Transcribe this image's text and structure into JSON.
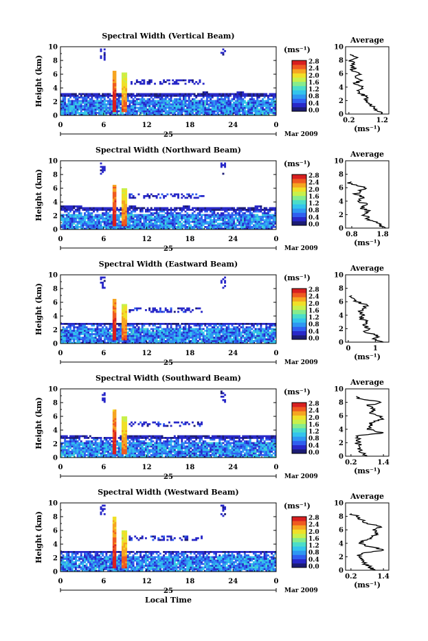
{
  "colorbar": {
    "unit": "(ms⁻¹)",
    "ticks": [
      "0.0",
      "0.4",
      "0.8",
      "1.2",
      "1.6",
      "2.0",
      "2.4",
      "2.8"
    ],
    "colors": [
      "#1c1c74",
      "#2828c8",
      "#2f5ff0",
      "#2e97f2",
      "#33c4ec",
      "#4bddc9",
      "#86ec8c",
      "#c8f04b",
      "#f0e028",
      "#f6a521",
      "#ef5a20",
      "#d81f1f"
    ]
  },
  "x_axis": {
    "ticks": [
      "0",
      "6",
      "12",
      "18",
      "24",
      "0"
    ],
    "day": "25",
    "month_label": "Mar 2009",
    "label": "Local Time"
  },
  "y_axis": {
    "label": "Height (km)",
    "ticks": [
      "0",
      "2",
      "4",
      "6",
      "8",
      "10"
    ]
  },
  "profile_title": "Average",
  "profile_unit": "(ms⁻¹)",
  "chart_data": [
    {
      "type": "heatmap",
      "title": "Spectral Width (Vertical Beam)",
      "xlabel": "",
      "ylabel": "Height (km)",
      "xlim": [
        0,
        24
      ],
      "ylim": [
        0,
        10
      ],
      "clim": [
        0.0,
        2.8
      ],
      "cloud_top_km": [
        3.3,
        3.3,
        3.3,
        3.2,
        3.2,
        3.3,
        3.2,
        3.3,
        3.4,
        3.3,
        3.4,
        3.3,
        3.3
      ],
      "cloud_top_times_h": [
        0,
        2,
        4,
        6,
        8,
        10,
        12,
        14,
        16,
        18,
        20,
        22,
        24
      ],
      "convection": [
        {
          "x": [
            5.7,
            6.3
          ],
          "top_km": 6.5,
          "value": 2.8
        },
        {
          "x": [
            6.8,
            7.3
          ],
          "top_km": 6.2,
          "value": 2.4
        }
      ],
      "profile": {
        "title": "Average",
        "xticks": [
          "0.2",
          "1.2"
        ],
        "xlim": [
          0.1,
          1.4
        ],
        "heights_km": [
          0,
          0.5,
          1,
          1.5,
          2,
          2.5,
          3,
          3.5,
          4,
          4.5,
          5,
          5.5,
          6,
          6.5,
          7,
          7.5,
          8,
          8.5,
          9,
          9.5,
          10
        ],
        "values": [
          1.2,
          1.05,
          0.95,
          0.8,
          0.7,
          0.75,
          0.55,
          0.45,
          0.6,
          0.35,
          0.6,
          0.4,
          0.5,
          0.3,
          0.35,
          0.3,
          0.25,
          0.4,
          0.3,
          null,
          null
        ]
      }
    },
    {
      "type": "heatmap",
      "title": "Spectral Width (Northward Beam)",
      "xlabel": "",
      "ylabel": "Height (km)",
      "xlim": [
        0,
        24
      ],
      "ylim": [
        0,
        10
      ],
      "clim": [
        0.0,
        2.8
      ],
      "cloud_top_km": [
        3.4,
        3.4,
        3.3,
        3.3,
        3.4,
        3.3,
        3.3,
        3.4,
        3.3,
        3.3,
        3.3,
        3.4,
        3.3
      ],
      "cloud_top_times_h": [
        0,
        2,
        4,
        6,
        8,
        10,
        12,
        14,
        16,
        18,
        20,
        22,
        24
      ],
      "convection": [
        {
          "x": [
            5.7,
            6.3
          ],
          "top_km": 6.5,
          "value": 2.8
        },
        {
          "x": [
            6.8,
            7.3
          ],
          "top_km": 6.0,
          "value": 2.4
        }
      ],
      "profile": {
        "title": "Average",
        "xticks": [
          "0.8",
          "1.8"
        ],
        "xlim": [
          0.6,
          2.0
        ],
        "heights_km": [
          0,
          0.5,
          1,
          1.5,
          2,
          2.5,
          3,
          3.5,
          4,
          4.5,
          5,
          5.5,
          6,
          6.5,
          7,
          7.5,
          8,
          8.5,
          9,
          9.5,
          10
        ],
        "values": [
          1.9,
          1.7,
          1.5,
          1.3,
          1.2,
          1.35,
          1.1,
          1.3,
          1.0,
          1.2,
          0.9,
          1.1,
          1.2,
          0.8,
          0.7,
          null,
          null,
          null,
          null,
          null,
          null
        ]
      }
    },
    {
      "type": "heatmap",
      "title": "Spectral Width (Eastward Beam)",
      "xlabel": "",
      "ylabel": "Height (km)",
      "xlim": [
        0,
        24
      ],
      "ylim": [
        0,
        10
      ],
      "clim": [
        0.0,
        2.8
      ],
      "cloud_top_km": [
        3.0,
        3.0,
        3.0,
        2.9,
        3.0,
        2.9,
        3.0,
        3.0,
        2.9,
        3.0,
        3.0,
        3.1,
        3.0
      ],
      "cloud_top_times_h": [
        0,
        2,
        4,
        6,
        8,
        10,
        12,
        14,
        16,
        18,
        20,
        22,
        24
      ],
      "convection": [
        {
          "x": [
            5.7,
            6.3
          ],
          "top_km": 6.5,
          "value": 2.8
        },
        {
          "x": [
            6.8,
            7.3
          ],
          "top_km": 5.8,
          "value": 2.4
        }
      ],
      "profile": {
        "title": "Average",
        "xticks": [
          "0",
          "1"
        ],
        "xlim": [
          -0.1,
          1.5
        ],
        "heights_km": [
          0,
          0.5,
          1,
          1.5,
          2,
          2.5,
          3,
          3.5,
          4,
          4.5,
          5,
          5.5,
          6,
          6.5,
          7,
          7.5,
          8,
          8.5,
          9,
          9.5,
          10
        ],
        "values": [
          1.3,
          0.9,
          1.1,
          0.6,
          0.8,
          0.55,
          0.7,
          0.45,
          0.6,
          0.4,
          0.55,
          0.7,
          0.3,
          0.2,
          0.1,
          null,
          null,
          null,
          null,
          null,
          null
        ]
      }
    },
    {
      "type": "heatmap",
      "title": "Spectral Width (Southward Beam)",
      "xlabel": "",
      "ylabel": "Height (km)",
      "xlim": [
        0,
        24
      ],
      "ylim": [
        0,
        10
      ],
      "clim": [
        0.0,
        2.8
      ],
      "cloud_top_km": [
        3.2,
        3.2,
        3.1,
        3.1,
        3.2,
        3.2,
        3.1,
        3.2,
        3.2,
        3.3,
        3.2,
        3.2,
        3.2
      ],
      "cloud_top_times_h": [
        0,
        2,
        4,
        6,
        8,
        10,
        12,
        14,
        16,
        18,
        20,
        22,
        24
      ],
      "convection": [
        {
          "x": [
            5.7,
            6.3
          ],
          "top_km": 7.0,
          "value": 2.8
        },
        {
          "x": [
            6.8,
            7.3
          ],
          "top_km": 6.0,
          "value": 2.4
        }
      ],
      "profile": {
        "title": "Average",
        "xticks": [
          "0.2",
          "1.4"
        ],
        "xlim": [
          0.0,
          1.6
        ],
        "heights_km": [
          0,
          0.5,
          1,
          1.5,
          2,
          2.5,
          3,
          3.5,
          4,
          4.5,
          5,
          5.5,
          6,
          6.5,
          7,
          7.5,
          8,
          8.5,
          9,
          9.5,
          10
        ],
        "values": [
          0.8,
          0.6,
          0.55,
          0.5,
          0.45,
          0.5,
          0.4,
          1.4,
          0.8,
          0.9,
          1.0,
          1.4,
          1.2,
          0.9,
          1.1,
          0.8,
          1.3,
          0.6,
          0.2,
          null,
          null
        ]
      }
    },
    {
      "type": "heatmap",
      "title": "Spectral Width (Westward Beam)",
      "xlabel": "Local Time",
      "ylabel": "Height (km)",
      "xlim": [
        0,
        24
      ],
      "ylim": [
        0,
        10
      ],
      "clim": [
        0.0,
        2.8
      ],
      "cloud_top_km": [
        3.1,
        3.0,
        3.1,
        3.0,
        3.0,
        3.1,
        3.0,
        3.0,
        3.1,
        3.0,
        3.0,
        3.1,
        3.0
      ],
      "cloud_top_times_h": [
        0,
        2,
        4,
        6,
        8,
        10,
        12,
        14,
        16,
        18,
        20,
        22,
        24
      ],
      "convection": [
        {
          "x": [
            5.7,
            6.3
          ],
          "top_km": 8.0,
          "value": 2.8
        },
        {
          "x": [
            6.8,
            7.3
          ],
          "top_km": 6.0,
          "value": 2.4
        }
      ],
      "profile": {
        "title": "Average",
        "xticks": [
          "0.2",
          "1.4"
        ],
        "xlim": [
          0.0,
          1.6
        ],
        "heights_km": [
          0,
          0.5,
          1,
          1.5,
          2,
          2.5,
          3,
          3.5,
          4,
          4.5,
          5,
          5.5,
          6,
          6.5,
          7,
          7.5,
          8,
          8.5,
          9,
          9.5,
          10
        ],
        "values": [
          1.1,
          0.9,
          0.7,
          0.6,
          0.5,
          0.6,
          1.4,
          0.9,
          0.5,
          0.8,
          1.0,
          1.2,
          1.0,
          1.3,
          0.8,
          0.6,
          0.4,
          0.2,
          null,
          null,
          null
        ]
      }
    }
  ]
}
